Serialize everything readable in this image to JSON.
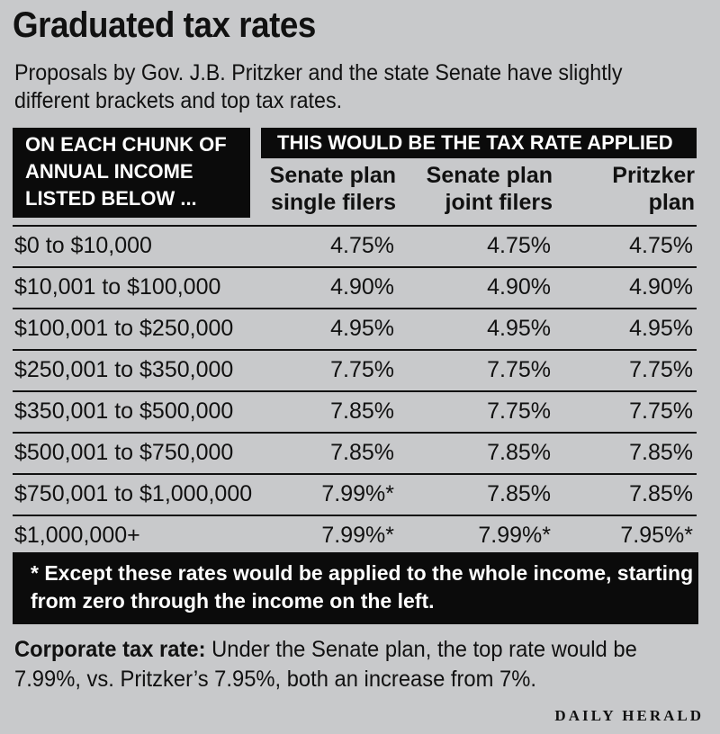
{
  "title": "Graduated tax rates",
  "subtitle": "Proposals by Gov. J.B. Pritzker and the state Senate have slightly different brackets and top tax rates.",
  "table": {
    "left_header": "ON EACH CHUNK OF\nANNUAL INCOME\nLISTED BELOW ...",
    "right_header": "THIS WOULD BE THE TAX RATE APPLIED",
    "columns": [
      "Senate plan\nsingle filers",
      "Senate plan\njoint filers",
      "Pritzker\nplan"
    ],
    "rows": [
      {
        "income": "$0 to $10,000",
        "rates": [
          "4.75%",
          "4.75%",
          "4.75%"
        ]
      },
      {
        "income": "$10,001 to $100,000",
        "rates": [
          "4.90%",
          "4.90%",
          "4.90%"
        ]
      },
      {
        "income": "$100,001 to $250,000",
        "rates": [
          "4.95%",
          "4.95%",
          "4.95%"
        ]
      },
      {
        "income": "$250,001 to $350,000",
        "rates": [
          "7.75%",
          "7.75%",
          "7.75%"
        ]
      },
      {
        "income": "$350,001 to $500,000",
        "rates": [
          "7.85%",
          "7.75%",
          "7.75%"
        ]
      },
      {
        "income": "$500,001 to $750,000",
        "rates": [
          "7.85%",
          "7.85%",
          "7.85%"
        ]
      },
      {
        "income": "$750,001 to $1,000,000",
        "rates": [
          "7.99%*",
          "7.85%",
          "7.85%"
        ]
      },
      {
        "income": "$1,000,000+",
        "rates": [
          "7.99%*",
          "7.99%*",
          "7.95%*"
        ]
      }
    ]
  },
  "footnote": "* Except these rates would be applied to the whole income, starting from zero through the income on the left.",
  "corporate": {
    "label": "Corporate tax rate:",
    "text": " Under the Senate plan, the top rate would be 7.99%, vs. Pritzker’s 7.95%, both an increase from 7%."
  },
  "credit": "DAILY HERALD",
  "colors": {
    "background": "#c8c9cb",
    "header_fill": "#0b0b0b",
    "text": "#111111"
  }
}
